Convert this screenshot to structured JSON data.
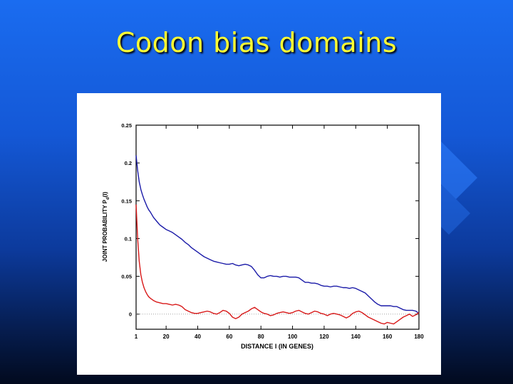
{
  "slide": {
    "title": "Codon bias domains"
  },
  "colors": {
    "background": "#1458d6",
    "title": "#ffff33",
    "series_blue": "#1a1aa8",
    "series_red": "#d81818"
  },
  "chart_data": {
    "type": "line",
    "title": "",
    "xlabel": "DISTANCE l (IN GENES)",
    "ylabel": "JOINT PROBABILITY P",
    "ylabel_subscript": "d",
    "ylabel_suffix": "(l)",
    "xlim": [
      1,
      180
    ],
    "ylim": [
      -0.02,
      0.25
    ],
    "xticks": [
      1,
      20,
      40,
      60,
      80,
      100,
      120,
      140,
      160,
      180
    ],
    "yticks": [
      0,
      0.05,
      0.1,
      0.15,
      0.2,
      0.25
    ],
    "ytick_labels": [
      "0",
      "0.05",
      "0.1",
      "0.15",
      "0.2",
      "0.25"
    ],
    "zero_line": true,
    "grid": false,
    "series": [
      {
        "color": "#1a1aa8",
        "x": [
          1,
          2,
          3,
          4,
          5,
          6,
          7,
          8,
          9,
          10,
          12,
          14,
          16,
          18,
          20,
          22,
          24,
          26,
          28,
          30,
          32,
          34,
          36,
          38,
          40,
          42,
          44,
          46,
          48,
          50,
          52,
          54,
          56,
          58,
          60,
          62,
          64,
          66,
          68,
          70,
          72,
          74,
          76,
          78,
          80,
          82,
          84,
          86,
          88,
          90,
          92,
          94,
          96,
          98,
          100,
          102,
          104,
          106,
          108,
          110,
          112,
          114,
          116,
          118,
          120,
          122,
          124,
          126,
          128,
          130,
          132,
          134,
          136,
          138,
          140,
          142,
          144,
          146,
          148,
          150,
          152,
          154,
          156,
          158,
          160,
          162,
          164,
          166,
          168,
          170,
          172,
          174,
          176,
          178,
          180
        ],
        "y": [
          0.21,
          0.19,
          0.175,
          0.165,
          0.158,
          0.152,
          0.147,
          0.142,
          0.138,
          0.135,
          0.128,
          0.123,
          0.118,
          0.115,
          0.112,
          0.11,
          0.108,
          0.105,
          0.102,
          0.099,
          0.095,
          0.092,
          0.088,
          0.085,
          0.082,
          0.079,
          0.076,
          0.074,
          0.072,
          0.07,
          0.069,
          0.068,
          0.067,
          0.066,
          0.066,
          0.067,
          0.065,
          0.064,
          0.065,
          0.066,
          0.065,
          0.063,
          0.058,
          0.052,
          0.048,
          0.048,
          0.05,
          0.051,
          0.05,
          0.05,
          0.049,
          0.05,
          0.05,
          0.049,
          0.049,
          0.049,
          0.048,
          0.045,
          0.042,
          0.042,
          0.041,
          0.041,
          0.04,
          0.038,
          0.037,
          0.037,
          0.036,
          0.037,
          0.037,
          0.036,
          0.035,
          0.035,
          0.034,
          0.035,
          0.034,
          0.032,
          0.03,
          0.028,
          0.024,
          0.02,
          0.016,
          0.013,
          0.011,
          0.011,
          0.011,
          0.011,
          0.01,
          0.01,
          0.008,
          0.006,
          0.005,
          0.005,
          0.005,
          0.004,
          0.001
        ]
      },
      {
        "color": "#d81818",
        "x": [
          1,
          2,
          3,
          4,
          5,
          6,
          7,
          8,
          9,
          10,
          12,
          14,
          16,
          18,
          20,
          22,
          24,
          26,
          28,
          30,
          32,
          34,
          36,
          38,
          40,
          42,
          44,
          46,
          48,
          50,
          52,
          54,
          56,
          58,
          60,
          62,
          64,
          66,
          68,
          70,
          72,
          74,
          76,
          78,
          80,
          82,
          84,
          86,
          88,
          90,
          92,
          94,
          96,
          98,
          100,
          102,
          104,
          106,
          108,
          110,
          112,
          114,
          116,
          118,
          120,
          122,
          124,
          126,
          128,
          130,
          132,
          134,
          136,
          138,
          140,
          142,
          144,
          146,
          148,
          150,
          152,
          154,
          156,
          158,
          160,
          162,
          164,
          166,
          168,
          170,
          172,
          174,
          176,
          178,
          180
        ],
        "y": [
          0.145,
          0.1,
          0.07,
          0.052,
          0.042,
          0.035,
          0.03,
          0.026,
          0.023,
          0.021,
          0.018,
          0.016,
          0.015,
          0.014,
          0.014,
          0.013,
          0.012,
          0.013,
          0.012,
          0.01,
          0.006,
          0.004,
          0.002,
          0.001,
          0.001,
          0.002,
          0.003,
          0.004,
          0.003,
          0.001,
          0.0,
          0.002,
          0.005,
          0.004,
          0.001,
          -0.004,
          -0.006,
          -0.004,
          0.0,
          0.002,
          0.004,
          0.007,
          0.009,
          0.006,
          0.003,
          0.001,
          0.0,
          -0.002,
          -0.001,
          0.001,
          0.002,
          0.003,
          0.002,
          0.001,
          0.002,
          0.004,
          0.005,
          0.003,
          0.001,
          0.0,
          0.002,
          0.004,
          0.003,
          0.001,
          0.0,
          -0.002,
          0.0,
          0.001,
          0.0,
          -0.001,
          -0.003,
          -0.005,
          -0.003,
          0.001,
          0.003,
          0.004,
          0.002,
          -0.001,
          -0.004,
          -0.006,
          -0.008,
          -0.01,
          -0.012,
          -0.013,
          -0.011,
          -0.012,
          -0.013,
          -0.01,
          -0.007,
          -0.004,
          -0.002,
          0.0,
          -0.003,
          -0.001,
          0.002
        ]
      }
    ]
  }
}
